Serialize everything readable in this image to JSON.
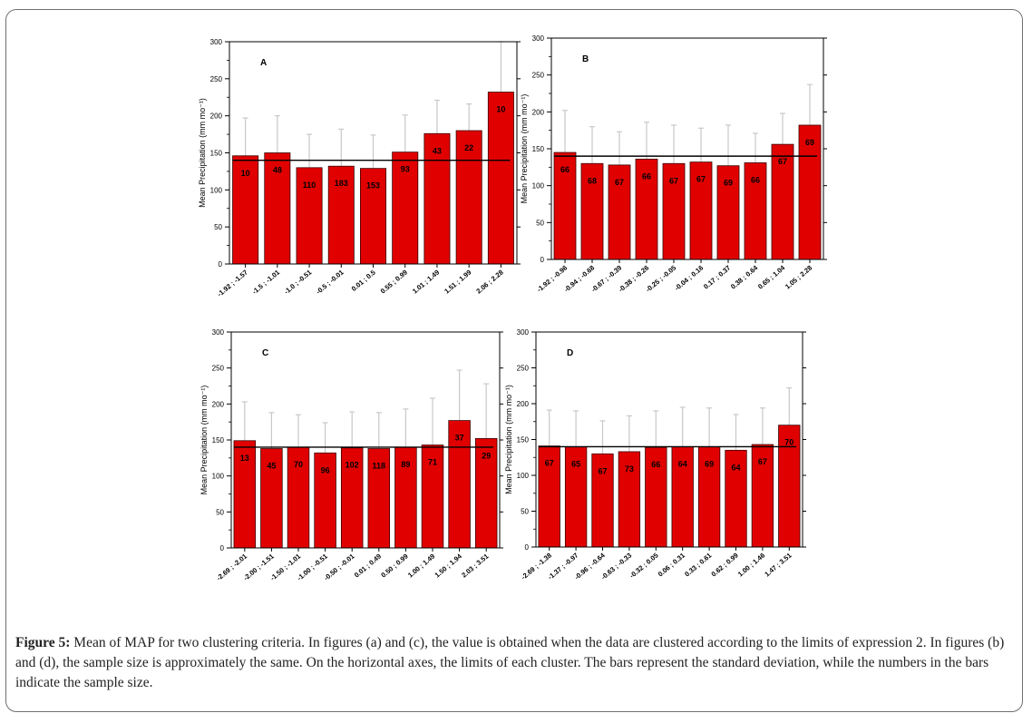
{
  "caption": {
    "label": "Figure 5:",
    "text": "Mean of MAP for two clustering criteria. In figures (a) and (c), the value is obtained when the data are clustered according to the limits of expression 2. In figures (b) and (d), the sample size is approximately the same. On the horizontal axes, the limits of each cluster. The bars represent the standard deviation, while the numbers in the bars indicate the sample size."
  },
  "style": {
    "bar_color": "#e00000",
    "bar_edge": "#3a0000",
    "error_color": "#c8c8c8",
    "mean_line_color": "#000000"
  },
  "chart_data": [
    {
      "type": "bar",
      "panel_label": "A",
      "ylabel": "Mean Precipitation (mm mo⁻¹)",
      "ylim": [
        0,
        300
      ],
      "yticks": [
        0,
        50,
        100,
        150,
        200,
        250,
        300
      ],
      "categories": [
        "-1.92 ; -1.57",
        "-1.5 ; -1.01",
        "-1.0 ; -0.51",
        "-0.5 ; -0.01",
        "0.01 ; 0.5",
        "0.55 ; 0.99",
        "1.01 ; 1.49",
        "1.51 ; 1.99",
        "2.06 ; 2.28"
      ],
      "values": [
        146,
        150,
        130,
        132,
        129,
        151,
        176,
        180,
        232
      ],
      "error_upper": [
        197,
        200,
        175,
        182,
        174,
        201,
        221,
        216,
        300
      ],
      "sample_sizes": [
        "10",
        "48",
        "110",
        "183",
        "153",
        "93",
        "43",
        "22",
        "10"
      ],
      "mean_line": 140
    },
    {
      "type": "bar",
      "panel_label": "B",
      "ylabel": "Mean Precipitation (mm mo⁻¹)",
      "ylim": [
        0,
        300
      ],
      "yticks": [
        0,
        50,
        100,
        150,
        200,
        250,
        300
      ],
      "categories": [
        "-1.92 ; -0.96",
        "-0.94 ; -0.68",
        "-0.67 ; -0.39",
        "-0.38 ; -0.26",
        "-0.25 ; -0.05",
        "-0.04 ; 0.16",
        "0.17 ; 0.37",
        "0.38 ; 0.64",
        "0.65 ; 1.04",
        "1.05 ; 2.28"
      ],
      "values": [
        145,
        130,
        128,
        136,
        130,
        132,
        127,
        131,
        156,
        182
      ],
      "error_upper": [
        202,
        180,
        173,
        186,
        182,
        178,
        182,
        171,
        198,
        237
      ],
      "sample_sizes": [
        "66",
        "68",
        "67",
        "66",
        "67",
        "67",
        "69",
        "66",
        "67",
        "69"
      ],
      "mean_line": 140
    },
    {
      "type": "bar",
      "panel_label": "C",
      "ylabel": "Mean Precipitation (mm mo⁻¹)",
      "ylim": [
        0,
        300
      ],
      "yticks": [
        0,
        50,
        100,
        150,
        200,
        250,
        300
      ],
      "categories": [
        "-2.69 ; -2.01",
        "-2.00 ; -1.51",
        "-1.50 ; -1.01",
        "-1.00 ; -0.51",
        "-0.50 ; -0.01",
        "0.01 ; 0.49",
        "0.50 ; 0.99",
        "1.00 ; 1.49",
        "1.50 ; 1.94",
        "2.03 ; 3.51"
      ],
      "values": [
        149,
        138,
        140,
        132,
        139,
        138,
        140,
        143,
        177,
        152
      ],
      "error_upper": [
        203,
        188,
        185,
        174,
        189,
        188,
        193,
        208,
        247,
        228
      ],
      "sample_sizes": [
        "13",
        "45",
        "70",
        "96",
        "102",
        "118",
        "89",
        "71",
        "37",
        "29"
      ],
      "mean_line": 140
    },
    {
      "type": "bar",
      "panel_label": "D",
      "ylabel": "Mean Precipitation (mm mo⁻¹)",
      "ylim": [
        0,
        300
      ],
      "yticks": [
        0,
        50,
        100,
        150,
        200,
        250,
        300
      ],
      "categories": [
        "-2.69 ; -1.38",
        "-1.37 ; -0.97",
        "-0.96 ; -0.64",
        "-0.63 ; -0.33",
        "-0.32 ; 0.05",
        "0.06 ; 0.31",
        "0.33 ; 0.61",
        "0.62 ; 0.99",
        "1.00 ; 1.46",
        "1.47 ; 3.51"
      ],
      "values": [
        141,
        140,
        130,
        133,
        139,
        140,
        140,
        135,
        143,
        170
      ],
      "error_upper": [
        191,
        190,
        176,
        183,
        190,
        195,
        194,
        185,
        194,
        222
      ],
      "sample_sizes": [
        "67",
        "65",
        "67",
        "73",
        "66",
        "64",
        "69",
        "64",
        "67",
        "70"
      ],
      "mean_line": 140
    }
  ]
}
